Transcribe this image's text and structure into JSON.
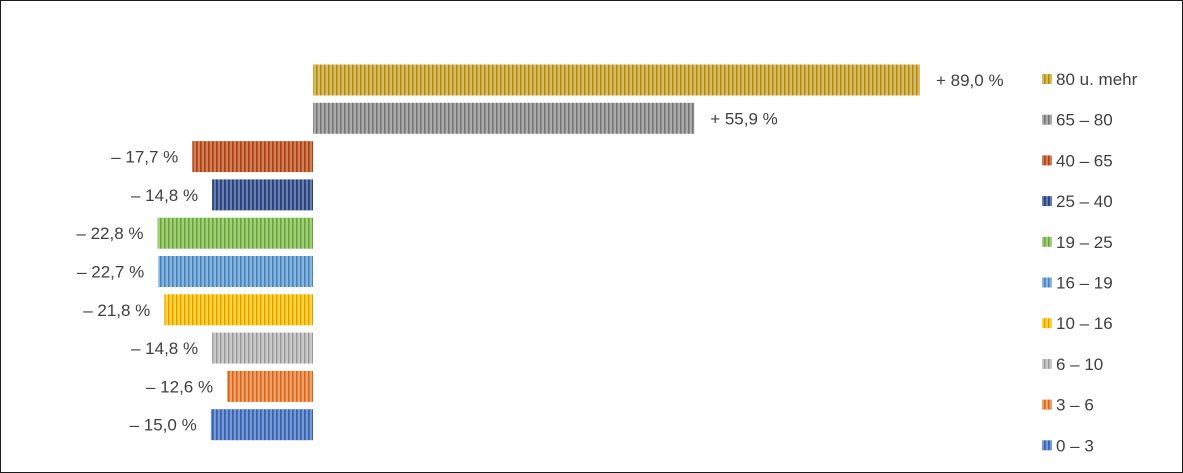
{
  "chart_data": {
    "type": "bar",
    "orientation": "horizontal",
    "unit": "%",
    "grid": false,
    "legend_position": "right",
    "categories": [
      "80 u. mehr",
      "65 – 80",
      "40 – 65",
      "25 – 40",
      "19 – 25",
      "16 – 19",
      "10 – 16",
      "6 – 10",
      "3 – 6",
      "0 – 3"
    ],
    "values": [
      89.0,
      55.9,
      -17.7,
      -14.8,
      -22.8,
      -22.7,
      -21.8,
      -14.8,
      -12.6,
      -15.0
    ],
    "value_labels": [
      "+ 89,0 %",
      "+ 55,9 %",
      "– 17,7 %",
      "– 14,8 %",
      "– 22,8 %",
      "– 22,7 %",
      "– 21,8 %",
      "– 14,8 %",
      "– 12,6 %",
      "– 15,0 %"
    ],
    "colors": [
      "#C9A227",
      "#8C8C8C",
      "#C0501E",
      "#2E4C8C",
      "#7EBD4A",
      "#5B9BD5",
      "#FFC000",
      "#B5B5B5",
      "#ED7D31",
      "#4472C4"
    ],
    "pattern": "vertical-stripes"
  }
}
